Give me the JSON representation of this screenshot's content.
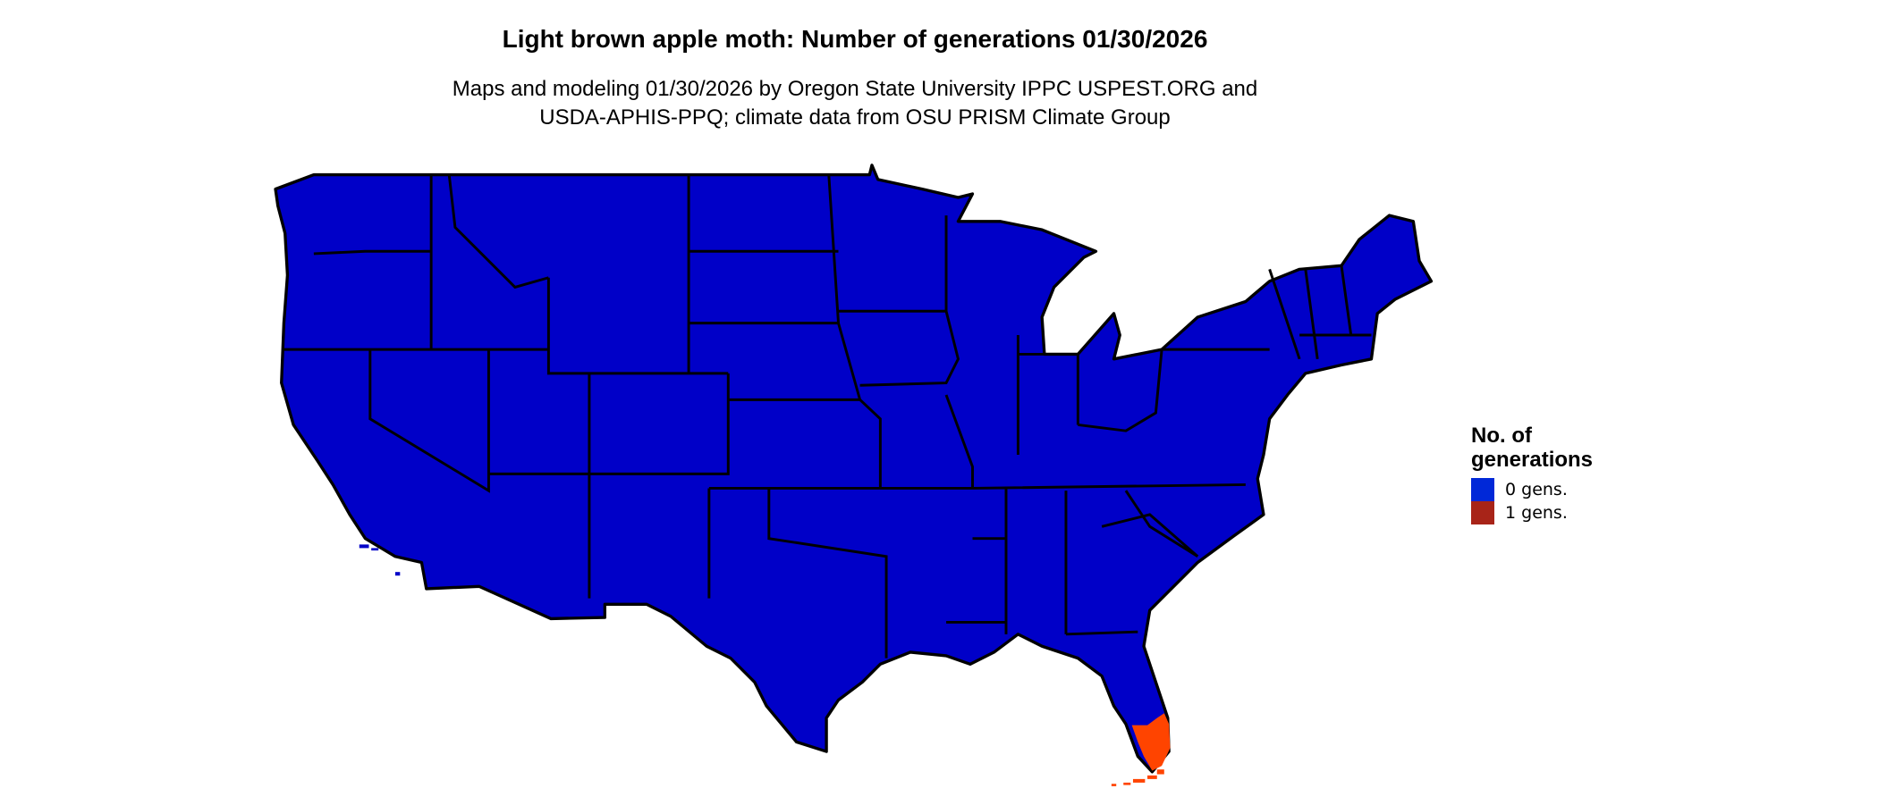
{
  "title": "Light brown apple moth: Number of generations 01/30/2026",
  "subtitle_line1": "Maps and modeling 01/30/2026 by Oregon State University IPPC USPEST.ORG and",
  "subtitle_line2": "USDA-APHIS-PPQ; climate data from OSU PRISM Climate Group",
  "legend": {
    "title_line1": "No. of",
    "title_line2": "generations",
    "items": [
      {
        "label": "0 gens.",
        "color": "#0028d8"
      },
      {
        "label": "1 gens.",
        "color": "#a82418"
      }
    ]
  },
  "map_colors": {
    "zero_gens": "#0000c8",
    "one_gen": "#ff4400",
    "border": "#000000"
  }
}
